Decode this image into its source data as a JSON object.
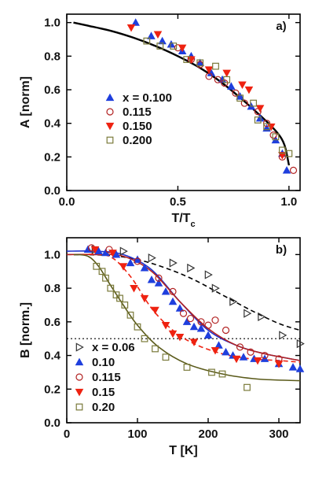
{
  "chart_data": [
    {
      "type": "scatter",
      "panel_label": "a)",
      "xlabel": "T/T",
      "xlabel_sub": "c",
      "ylabel": "A [norm]",
      "xlim": [
        0,
        1.05
      ],
      "ylim": [
        0,
        1.05
      ],
      "x_ticks": [
        0.0,
        0.5,
        1.0
      ],
      "x_tick_labels": [
        "0.0",
        "0.5",
        "1.0"
      ],
      "y_ticks": [
        0.0,
        0.2,
        0.4,
        0.6,
        0.8,
        1.0
      ],
      "y_tick_labels": [
        "0.0",
        "0.2",
        "0.4",
        "0.6",
        "0.8",
        "1.0"
      ],
      "legend_position": "center-left",
      "fit_curve": {
        "color": "#000000",
        "points": [
          [
            0.03,
            1.0
          ],
          [
            0.1,
            0.98
          ],
          [
            0.2,
            0.95
          ],
          [
            0.3,
            0.91
          ],
          [
            0.4,
            0.86
          ],
          [
            0.5,
            0.8
          ],
          [
            0.6,
            0.73
          ],
          [
            0.7,
            0.64
          ],
          [
            0.8,
            0.53
          ],
          [
            0.9,
            0.41
          ],
          [
            0.95,
            0.34
          ],
          [
            0.98,
            0.27
          ],
          [
            1.0,
            0.15
          ]
        ]
      },
      "series": [
        {
          "name": "x = 0.100",
          "label_prefix": "",
          "marker": "triangle-up",
          "filled": true,
          "color": "#1f3fdd",
          "points": [
            [
              0.31,
              1.0
            ],
            [
              0.38,
              0.92
            ],
            [
              0.43,
              0.89
            ],
            [
              0.47,
              0.87
            ],
            [
              0.52,
              0.83
            ],
            [
              0.56,
              0.8
            ],
            [
              0.6,
              0.76
            ],
            [
              0.65,
              0.7
            ],
            [
              0.7,
              0.66
            ],
            [
              0.74,
              0.62
            ],
            [
              0.78,
              0.56
            ],
            [
              0.83,
              0.5
            ],
            [
              0.87,
              0.43
            ],
            [
              0.9,
              0.37
            ],
            [
              0.94,
              0.3
            ],
            [
              0.97,
              0.22
            ],
            [
              0.99,
              0.12
            ]
          ]
        },
        {
          "name": "0.115",
          "marker": "circle",
          "filled": false,
          "color": "#b22222",
          "points": [
            [
              0.5,
              0.85
            ],
            [
              0.56,
              0.78
            ],
            [
              0.6,
              0.75
            ],
            [
              0.64,
              0.68
            ],
            [
              0.68,
              0.66
            ],
            [
              0.71,
              0.64
            ],
            [
              0.76,
              0.58
            ],
            [
              0.8,
              0.52
            ],
            [
              0.86,
              0.47
            ],
            [
              0.9,
              0.4
            ],
            [
              0.93,
              0.33
            ],
            [
              0.97,
              0.2
            ],
            [
              1.02,
              0.12
            ]
          ]
        },
        {
          "name": "0.150",
          "marker": "triangle-down",
          "filled": true,
          "color": "#ee2211",
          "points": [
            [
              0.29,
              0.97
            ],
            [
              0.41,
              0.93
            ],
            [
              0.52,
              0.85
            ],
            [
              0.56,
              0.78
            ],
            [
              0.64,
              0.72
            ],
            [
              0.72,
              0.7
            ],
            [
              0.79,
              0.63
            ],
            [
              0.82,
              0.6
            ],
            [
              0.87,
              0.49
            ],
            [
              0.92,
              0.38
            ],
            [
              0.97,
              0.21
            ]
          ]
        },
        {
          "name": "0.200",
          "marker": "square",
          "filled": false,
          "color": "#7a7a3a",
          "points": [
            [
              0.36,
              0.89
            ],
            [
              0.42,
              0.86
            ],
            [
              0.48,
              0.86
            ],
            [
              0.54,
              0.78
            ],
            [
              0.6,
              0.76
            ],
            [
              0.67,
              0.74
            ],
            [
              0.72,
              0.66
            ],
            [
              0.78,
              0.55
            ],
            [
              0.84,
              0.52
            ],
            [
              0.86,
              0.42
            ],
            [
              0.9,
              0.38
            ],
            [
              0.94,
              0.32
            ],
            [
              0.97,
              0.24
            ],
            [
              1.0,
              0.22
            ]
          ]
        }
      ]
    },
    {
      "type": "scatter",
      "panel_label": "b)",
      "xlabel": "T [K]",
      "ylabel": "B [norm.]",
      "xlim": [
        0,
        330
      ],
      "ylim": [
        0,
        1.1
      ],
      "x_ticks": [
        0,
        100,
        200,
        300
      ],
      "x_tick_labels": [
        "0",
        "100",
        "200",
        "300"
      ],
      "y_ticks": [
        0.0,
        0.2,
        0.4,
        0.6,
        0.8,
        1.0
      ],
      "y_tick_labels": [
        "0.0",
        "0.2",
        "0.4",
        "0.6",
        "0.8",
        "1.0"
      ],
      "reference_line": {
        "y": 0.5,
        "style": "dotted",
        "color": "#000000"
      },
      "legend_position": "lower-left",
      "series": [
        {
          "name": "x = 0.06",
          "marker": "triangle-right",
          "filled": false,
          "color": "#333333",
          "points": [
            [
              40,
              1.03
            ],
            [
              80,
              1.02
            ],
            [
              120,
              0.98
            ],
            [
              150,
              0.95
            ],
            [
              175,
              0.92
            ],
            [
              200,
              0.88
            ],
            [
              210,
              0.8
            ],
            [
              235,
              0.72
            ],
            [
              255,
              0.65
            ],
            [
              275,
              0.63
            ],
            [
              305,
              0.52
            ],
            [
              330,
              0.47
            ]
          ],
          "fit": {
            "style": "dashed",
            "color": "#000000",
            "points": [
              [
                10,
                1.0
              ],
              [
                60,
                0.995
              ],
              [
                100,
                0.97
              ],
              [
                140,
                0.92
              ],
              [
                180,
                0.85
              ],
              [
                220,
                0.76
              ],
              [
                260,
                0.67
              ],
              [
                300,
                0.59
              ],
              [
                330,
                0.55
              ]
            ]
          }
        },
        {
          "name": "0.10",
          "marker": "triangle-up",
          "filled": true,
          "color": "#1f3fdd",
          "points": [
            [
              30,
              1.03
            ],
            [
              45,
              1.02
            ],
            [
              55,
              1.01
            ],
            [
              70,
              1.0
            ],
            [
              90,
              0.95
            ],
            [
              100,
              0.97
            ],
            [
              110,
              0.92
            ],
            [
              120,
              0.85
            ],
            [
              130,
              0.83
            ],
            [
              140,
              0.78
            ],
            [
              150,
              0.72
            ],
            [
              160,
              0.68
            ],
            [
              170,
              0.6
            ],
            [
              180,
              0.57
            ],
            [
              190,
              0.56
            ],
            [
              200,
              0.52
            ],
            [
              215,
              0.46
            ],
            [
              225,
              0.42
            ],
            [
              235,
              0.4
            ],
            [
              250,
              0.39
            ],
            [
              265,
              0.38
            ],
            [
              280,
              0.38
            ],
            [
              300,
              0.35
            ],
            [
              320,
              0.33
            ],
            [
              330,
              0.32
            ]
          ],
          "fit": {
            "style": "solid",
            "color": "#2233cc",
            "points": [
              [
                0,
                1.02
              ],
              [
                40,
                1.02
              ],
              [
                80,
                1.0
              ],
              [
                120,
                0.91
              ],
              [
                160,
                0.72
              ],
              [
                200,
                0.55
              ],
              [
                240,
                0.46
              ],
              [
                280,
                0.41
              ],
              [
                330,
                0.37
              ]
            ]
          }
        },
        {
          "name": "0.115",
          "marker": "circle",
          "filled": false,
          "color": "#b22222",
          "points": [
            [
              35,
              1.04
            ],
            [
              60,
              1.03
            ],
            [
              100,
              0.96
            ],
            [
              130,
              0.86
            ],
            [
              150,
              0.78
            ],
            [
              165,
              0.65
            ],
            [
              175,
              0.62
            ],
            [
              190,
              0.6
            ],
            [
              200,
              0.58
            ],
            [
              210,
              0.61
            ],
            [
              225,
              0.55
            ],
            [
              245,
              0.45
            ],
            [
              260,
              0.42
            ],
            [
              280,
              0.4
            ],
            [
              300,
              0.38
            ]
          ],
          "fit": {
            "style": "solid",
            "color": "#b22222",
            "points": [
              [
                0,
                1.0
              ],
              [
                40,
                1.0
              ],
              [
                80,
                0.99
              ],
              [
                120,
                0.9
              ],
              [
                160,
                0.72
              ],
              [
                200,
                0.56
              ],
              [
                240,
                0.46
              ],
              [
                280,
                0.41
              ],
              [
                330,
                0.37
              ]
            ]
          }
        },
        {
          "name": "0.15",
          "marker": "triangle-down",
          "filled": true,
          "color": "#ee2211",
          "points": [
            [
              40,
              1.03
            ],
            [
              65,
              1.01
            ],
            [
              80,
              0.93
            ],
            [
              95,
              0.8
            ],
            [
              110,
              0.74
            ],
            [
              125,
              0.67
            ],
            [
              140,
              0.58
            ],
            [
              150,
              0.53
            ],
            [
              160,
              0.51
            ],
            [
              180,
              0.48
            ],
            [
              210,
              0.43
            ],
            [
              240,
              0.38
            ],
            [
              270,
              0.37
            ],
            [
              300,
              0.35
            ]
          ],
          "fit": {
            "style": "dashed",
            "color": "#ee2211",
            "points": [
              [
                20,
                1.0
              ],
              [
                60,
                0.99
              ],
              [
                90,
                0.87
              ],
              [
                120,
                0.68
              ],
              [
                150,
                0.55
              ],
              [
                180,
                0.47
              ],
              [
                220,
                0.41
              ],
              [
                260,
                0.38
              ],
              [
                300,
                0.37
              ],
              [
                330,
                0.36
              ]
            ]
          }
        },
        {
          "name": "0.20",
          "marker": "square",
          "filled": false,
          "color": "#7a7a3a",
          "points": [
            [
              42,
              0.93
            ],
            [
              50,
              0.9
            ],
            [
              55,
              0.86
            ],
            [
              62,
              0.8
            ],
            [
              70,
              0.76
            ],
            [
              75,
              0.74
            ],
            [
              82,
              0.7
            ],
            [
              90,
              0.64
            ],
            [
              100,
              0.57
            ],
            [
              110,
              0.5
            ],
            [
              125,
              0.44
            ],
            [
              140,
              0.39
            ],
            [
              170,
              0.33
            ],
            [
              205,
              0.3
            ],
            [
              220,
              0.29
            ],
            [
              255,
              0.21
            ]
          ],
          "fit": {
            "style": "solid",
            "color": "#5a5a1a",
            "points": [
              [
                10,
                1.0
              ],
              [
                30,
                0.99
              ],
              [
                45,
                0.93
              ],
              [
                60,
                0.83
              ],
              [
                80,
                0.7
              ],
              [
                100,
                0.58
              ],
              [
                130,
                0.45
              ],
              [
                170,
                0.35
              ],
              [
                220,
                0.29
              ],
              [
                270,
                0.26
              ],
              [
                330,
                0.25
              ]
            ]
          }
        }
      ]
    }
  ]
}
